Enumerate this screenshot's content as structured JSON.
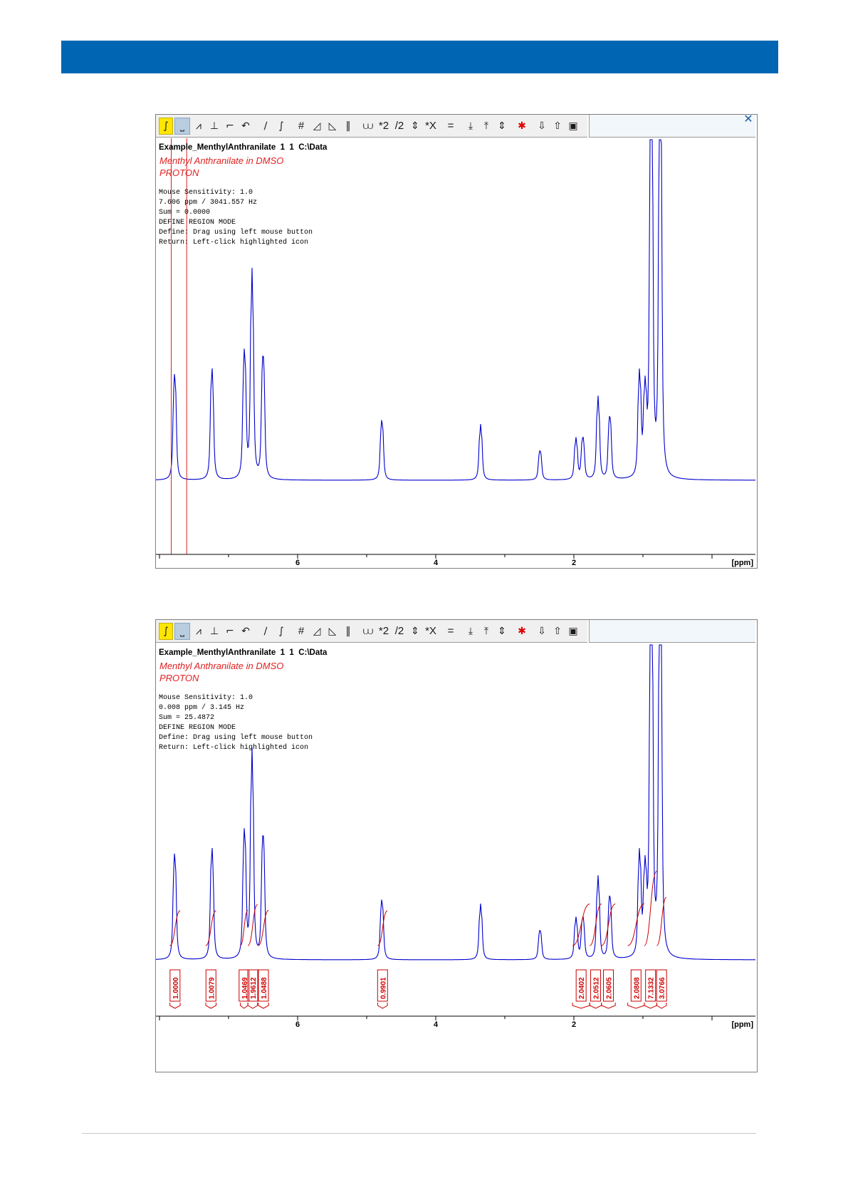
{
  "page": {
    "header_color": "#0066b3"
  },
  "toolbar": {
    "icons": [
      "integrate-icon",
      "define-region-icon",
      "auto-integrate-icon",
      "peak-pick-icon",
      "step-icon",
      "undo-icon",
      "slope-icon",
      "bias-icon",
      "hash-icon",
      "tilt-left-icon",
      "tilt-right-icon",
      "pause-icon",
      "baseline-icon",
      "times-2-label",
      "div-2-label",
      "up-down-icon",
      "times-x-label",
      "equal-icon",
      "move-down-icon",
      "move-top-icon",
      "move-updown-icon",
      "delete-icon",
      "export-icon",
      "import-icon",
      "save-icon",
      "return-icon"
    ],
    "labels": {
      "times2": "*2",
      "div2": "/2",
      "timesx": "*X",
      "hash": "#",
      "equal": "="
    }
  },
  "window1": {
    "header": "Example_MenthylAnthranilate  1  1  C:\\Data",
    "title1": "Menthyl Anthranilate in DMSO",
    "title2": "PROTON",
    "info": [
      "Mouse Sensitivity: 1.0",
      "7.606 ppm / 3041.557 Hz",
      "Sum = 0.0000",
      "DEFINE REGION MODE",
      "Define: Drag using left mouse button",
      "Return: Left-click highlighted icon"
    ]
  },
  "window2": {
    "header": "Example_MenthylAnthranilate  1  1  C:\\Data",
    "title1": "Menthyl Anthranilate in DMSO",
    "title2": "PROTON",
    "info": [
      "Mouse Sensitivity: 1.0",
      "0.008 ppm / 3.145 Hz",
      "Sum = 25.4872",
      "DEFINE REGION MODE",
      "Define: Drag using left mouse button",
      "Return: Left-click highlighted icon"
    ]
  },
  "chart_data": {
    "type": "line",
    "xlabel": "[ppm]",
    "x_ticks": [
      "6",
      "4",
      "2"
    ],
    "x_reversed": true,
    "colors": {
      "spectrum": "#0000cc",
      "integral": "#cc0000",
      "cursor": "#dd2222"
    },
    "cursor_ppm": [
      7.83,
      7.606
    ],
    "peaks": [
      {
        "ppm": 7.78,
        "height": 0.53
      },
      {
        "ppm": 7.24,
        "height": 0.55
      },
      {
        "ppm": 6.77,
        "height": 0.63
      },
      {
        "ppm": 6.66,
        "height": 1.0
      },
      {
        "ppm": 6.5,
        "height": 0.63
      },
      {
        "ppm": 4.78,
        "height": 0.3
      },
      {
        "ppm": 3.35,
        "height": 0.27
      },
      {
        "ppm": 2.49,
        "height": 0.15
      },
      {
        "ppm": 1.97,
        "height": 0.2
      },
      {
        "ppm": 1.87,
        "height": 0.21
      },
      {
        "ppm": 1.65,
        "height": 0.4
      },
      {
        "ppm": 1.48,
        "height": 0.32
      },
      {
        "ppm": 1.05,
        "height": 0.5
      },
      {
        "ppm": 0.97,
        "height": 0.4
      },
      {
        "ppm": 0.88,
        "height": 2.2
      },
      {
        "ppm": 0.75,
        "height": 2.05
      }
    ],
    "integrals": [
      {
        "value": "1.0000",
        "from": 7.85,
        "to": 7.7
      },
      {
        "value": "1.0079",
        "from": 7.33,
        "to": 7.18
      },
      {
        "value": "1.0469",
        "from": 6.83,
        "to": 6.72
      },
      {
        "value": "1.9612",
        "from": 6.72,
        "to": 6.58
      },
      {
        "value": "1.0488",
        "from": 6.57,
        "to": 6.42
      },
      {
        "value": "0.9901",
        "from": 4.84,
        "to": 4.7
      },
      {
        "value": "2.0402",
        "from": 2.02,
        "to": 1.77
      },
      {
        "value": "2.0512",
        "from": 1.77,
        "to": 1.6
      },
      {
        "value": "2.0605",
        "from": 1.6,
        "to": 1.4
      },
      {
        "value": "2.0808",
        "from": 1.22,
        "to": 0.98
      },
      {
        "value": "7.1332",
        "from": 0.98,
        "to": 0.8
      },
      {
        "value": "3.0766",
        "from": 0.8,
        "to": 0.66
      }
    ]
  }
}
